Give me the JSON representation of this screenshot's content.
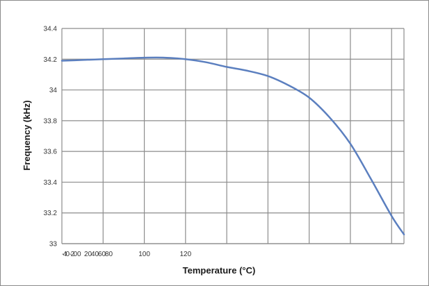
{
  "chart_data": {
    "type": "line",
    "xlabel": "Temperature (°C)",
    "ylabel": "Frequency (kHz)",
    "ylim": [
      33,
      34.4
    ],
    "yticks": [
      "33",
      "33.2",
      "33.4",
      "33.6",
      "33.8",
      "34",
      "34.2",
      "34.4"
    ],
    "xtick_labels": [
      "-40",
      "-20",
      "0",
      "20",
      "40",
      "60",
      "80",
      "100",
      "120"
    ],
    "grid": true,
    "legend": "none",
    "series": [
      {
        "color": "#5b7fbf",
        "points": [
          [
            0,
            34.19
          ],
          [
            0.5,
            34.195
          ],
          [
            1,
            34.2
          ],
          [
            1.5,
            34.205
          ],
          [
            2,
            34.21
          ],
          [
            2.5,
            34.21
          ],
          [
            3,
            34.2
          ],
          [
            3.5,
            34.18
          ],
          [
            4,
            34.15
          ],
          [
            4.5,
            34.125
          ],
          [
            5,
            34.09
          ],
          [
            5.5,
            34.03
          ],
          [
            6,
            33.95
          ],
          [
            6.5,
            33.82
          ],
          [
            7,
            33.65
          ],
          [
            7.5,
            33.42
          ],
          [
            8,
            33.18
          ],
          [
            8.3,
            33.06
          ]
        ]
      }
    ]
  }
}
